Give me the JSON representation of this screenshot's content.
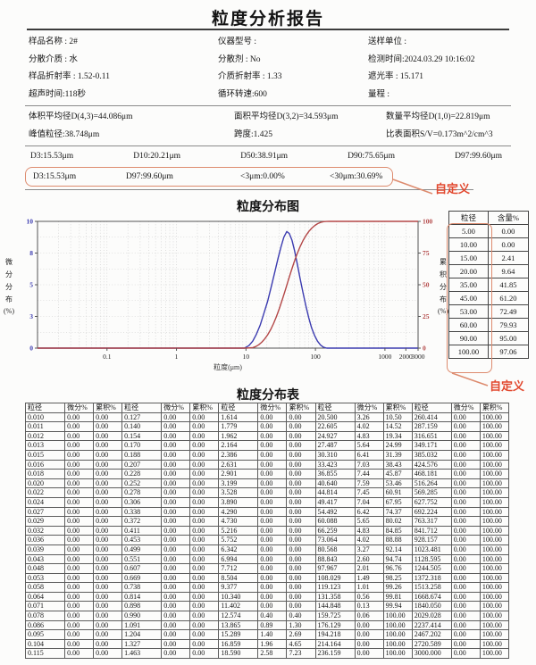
{
  "title": "粒度分析报告",
  "colors": {
    "annotation_red": "#e2482e",
    "highlight_box": "#dd8b6e",
    "curve_blue": "#3b3bb0",
    "curve_red": "#b34747"
  },
  "info": {
    "columns": [
      [
        "样品名称 : 2#",
        "分散介质 : 水",
        "样品折射率 : 1.52-0.11",
        "超声时间:118秒"
      ],
      [
        "仪器型号 :",
        "分散剂 : No",
        "介质折射率 : 1.33",
        "循环转速:600"
      ],
      [
        "送样单位 :",
        "检测时间:2024.03.29 10:16:02",
        "遮光率 : 15.171",
        "量程 :"
      ]
    ]
  },
  "summary": {
    "rows": [
      [
        "体积平均径D(4,3)=44.086μm",
        "面积平均径D(3,2)=34.593μm",
        "数量平均径D(1,0)=22.819μm"
      ],
      [
        "峰值粒径:38.748μm",
        "跨度:1.425",
        "比表面积S/V=0.173m^2/cm^3"
      ]
    ]
  },
  "d_values": [
    "D3:15.53μm",
    "D10:20.21μm",
    "D50:38.91μm",
    "D90:75.65μm",
    "D97:99.60μm"
  ],
  "custom_row": [
    "D3:15.53μm",
    "D97:99.60μm",
    "<3μm:0.00%",
    "<30μm:30.69%"
  ],
  "annotations": {
    "custom_label": "自定义"
  },
  "chart": {
    "title": "粒度分布图",
    "xlabel": "粒度(μm)",
    "ylabel_left_chars": [
      "微",
      "分",
      "分",
      "布",
      "(%)"
    ],
    "ylabel_right_chars": [
      "累",
      "积",
      "分",
      "布",
      "(%)"
    ]
  },
  "chart_data": {
    "type": "line",
    "title": "粒度分布图",
    "xlabel": "粒度(μm)",
    "ylabel_left": "微分分布(%)",
    "ylabel_right": "累积分布(%)",
    "x_scale": "log",
    "x_range": [
      0.01,
      3000
    ],
    "x_ticks": [
      {
        "v": 0.1,
        "label": "0.1"
      },
      {
        "v": 1,
        "label": "1"
      },
      {
        "v": 10,
        "label": "10"
      },
      {
        "v": 100,
        "label": "100"
      },
      {
        "v": 1000,
        "label": "1000"
      },
      {
        "v": 2000,
        "label": "2000"
      },
      {
        "v": 3000,
        "label": "3000"
      }
    ],
    "left_axis": {
      "range": [
        0,
        10
      ],
      "ticks": [
        {
          "v": 0,
          "label": "0"
        },
        {
          "v": 2.5,
          "label": "3"
        },
        {
          "v": 5,
          "label": "5"
        },
        {
          "v": 7.5,
          "label": "8"
        },
        {
          "v": 10,
          "label": "10"
        }
      ]
    },
    "right_axis": {
      "range": [
        0,
        100
      ],
      "ticks": [
        {
          "v": 0,
          "label": "0"
        },
        {
          "v": 25,
          "label": "25"
        },
        {
          "v": 50,
          "label": "50"
        },
        {
          "v": 75,
          "label": "75"
        },
        {
          "v": 100,
          "label": "100"
        }
      ]
    },
    "grid": "dotted",
    "series": [
      {
        "name": "微分分布",
        "axis": "left",
        "color_key": "curve_blue",
        "points": [
          [
            0.01,
            0
          ],
          [
            9.5,
            0
          ],
          [
            11,
            0.2
          ],
          [
            12.5,
            0.55
          ],
          [
            14,
            1.05
          ],
          [
            16,
            1.8
          ],
          [
            18,
            2.7
          ],
          [
            20.5,
            3.7
          ],
          [
            23,
            4.8
          ],
          [
            26,
            6.0
          ],
          [
            29,
            7.1
          ],
          [
            32,
            8.0
          ],
          [
            35,
            8.75
          ],
          [
            38.7,
            9.2
          ],
          [
            42,
            9.05
          ],
          [
            46,
            8.5
          ],
          [
            50,
            7.7
          ],
          [
            55,
            6.6
          ],
          [
            60,
            5.5
          ],
          [
            66,
            4.4
          ],
          [
            73,
            3.3
          ],
          [
            80,
            2.4
          ],
          [
            88,
            1.6
          ],
          [
            97,
            1.0
          ],
          [
            107,
            0.55
          ],
          [
            118,
            0.25
          ],
          [
            130,
            0.08
          ],
          [
            145,
            0
          ],
          [
            3000,
            0
          ]
        ]
      },
      {
        "name": "累积分布",
        "axis": "right",
        "color_key": "curve_red",
        "points": [
          [
            0.01,
            0
          ],
          [
            10,
            0
          ],
          [
            12.574,
            0.4
          ],
          [
            13.865,
            1.3
          ],
          [
            15.289,
            2.69
          ],
          [
            16.859,
            4.65
          ],
          [
            18.59,
            7.23
          ],
          [
            20.5,
            10.5
          ],
          [
            22.605,
            14.52
          ],
          [
            24.927,
            19.34
          ],
          [
            27.487,
            24.99
          ],
          [
            30.31,
            31.39
          ],
          [
            33.423,
            38.43
          ],
          [
            36.855,
            45.87
          ],
          [
            40.64,
            53.46
          ],
          [
            44.814,
            60.91
          ],
          [
            49.417,
            67.95
          ],
          [
            54.492,
            74.37
          ],
          [
            60.088,
            80.02
          ],
          [
            66.259,
            84.85
          ],
          [
            73.064,
            88.88
          ],
          [
            80.568,
            92.14
          ],
          [
            88.843,
            94.74
          ],
          [
            97.967,
            96.76
          ],
          [
            108.029,
            98.25
          ],
          [
            119.123,
            99.26
          ],
          [
            131.358,
            99.81
          ],
          [
            144.848,
            99.94
          ],
          [
            159.725,
            100
          ],
          [
            3000,
            100
          ]
        ]
      }
    ]
  },
  "side_table": {
    "headers": [
      "粒径",
      "含量%"
    ],
    "rows": [
      [
        "5.00",
        "0.00"
      ],
      [
        "10.00",
        "0.00"
      ],
      [
        "15.00",
        "2.41"
      ],
      [
        "20.00",
        "9.64"
      ],
      [
        "35.00",
        "41.85"
      ],
      [
        "45.00",
        "61.20"
      ],
      [
        "53.00",
        "72.49"
      ],
      [
        "60.00",
        "79.93"
      ],
      [
        "90.00",
        "95.00"
      ],
      [
        "100.00",
        "97.06"
      ]
    ]
  },
  "dist_table": {
    "title": "粒度分布表",
    "headers": [
      "粒径",
      "微分%",
      "累积%",
      "粒径",
      "微分%",
      "累积%",
      "粒径",
      "微分%",
      "累积%",
      "粒径",
      "微分%",
      "累积%",
      "粒径",
      "微分%",
      "累积%"
    ],
    "rows": [
      [
        "0.010",
        "0.00",
        "0.00",
        "0.127",
        "0.00",
        "0.00",
        "1.614",
        "0.00",
        "0.00",
        "20.500",
        "3.26",
        "10.50",
        "260.414",
        "0.00",
        "100.00"
      ],
      [
        "0.011",
        "0.00",
        "0.00",
        "0.140",
        "0.00",
        "0.00",
        "1.779",
        "0.00",
        "0.00",
        "22.605",
        "4.02",
        "14.52",
        "287.159",
        "0.00",
        "100.00"
      ],
      [
        "0.012",
        "0.00",
        "0.00",
        "0.154",
        "0.00",
        "0.00",
        "1.962",
        "0.00",
        "0.00",
        "24.927",
        "4.83",
        "19.34",
        "316.651",
        "0.00",
        "100.00"
      ],
      [
        "0.013",
        "0.00",
        "0.00",
        "0.170",
        "0.00",
        "0.00",
        "2.164",
        "0.00",
        "0.00",
        "27.487",
        "5.64",
        "24.99",
        "349.171",
        "0.00",
        "100.00"
      ],
      [
        "0.015",
        "0.00",
        "0.00",
        "0.188",
        "0.00",
        "0.00",
        "2.386",
        "0.00",
        "0.00",
        "30.310",
        "6.41",
        "31.39",
        "385.032",
        "0.00",
        "100.00"
      ],
      [
        "0.016",
        "0.00",
        "0.00",
        "0.207",
        "0.00",
        "0.00",
        "2.631",
        "0.00",
        "0.00",
        "33.423",
        "7.03",
        "38.43",
        "424.576",
        "0.00",
        "100.00"
      ],
      [
        "0.018",
        "0.00",
        "0.00",
        "0.228",
        "0.00",
        "0.00",
        "2.901",
        "0.00",
        "0.00",
        "36.855",
        "7.44",
        "45.87",
        "468.181",
        "0.00",
        "100.00"
      ],
      [
        "0.020",
        "0.00",
        "0.00",
        "0.252",
        "0.00",
        "0.00",
        "3.199",
        "0.00",
        "0.00",
        "40.640",
        "7.59",
        "53.46",
        "516.264",
        "0.00",
        "100.00"
      ],
      [
        "0.022",
        "0.00",
        "0.00",
        "0.278",
        "0.00",
        "0.00",
        "3.528",
        "0.00",
        "0.00",
        "44.814",
        "7.45",
        "60.91",
        "569.285",
        "0.00",
        "100.00"
      ],
      [
        "0.024",
        "0.00",
        "0.00",
        "0.306",
        "0.00",
        "0.00",
        "3.890",
        "0.00",
        "0.00",
        "49.417",
        "7.04",
        "67.95",
        "627.752",
        "0.00",
        "100.00"
      ],
      [
        "0.027",
        "0.00",
        "0.00",
        "0.338",
        "0.00",
        "0.00",
        "4.290",
        "0.00",
        "0.00",
        "54.492",
        "6.42",
        "74.37",
        "692.224",
        "0.00",
        "100.00"
      ],
      [
        "0.029",
        "0.00",
        "0.00",
        "0.372",
        "0.00",
        "0.00",
        "4.730",
        "0.00",
        "0.00",
        "60.088",
        "5.65",
        "80.02",
        "763.317",
        "0.00",
        "100.00"
      ],
      [
        "0.032",
        "0.00",
        "0.00",
        "0.411",
        "0.00",
        "0.00",
        "5.216",
        "0.00",
        "0.00",
        "66.259",
        "4.83",
        "84.85",
        "841.712",
        "0.00",
        "100.00"
      ],
      [
        "0.036",
        "0.00",
        "0.00",
        "0.453",
        "0.00",
        "0.00",
        "5.752",
        "0.00",
        "0.00",
        "73.064",
        "4.02",
        "88.88",
        "928.157",
        "0.00",
        "100.00"
      ],
      [
        "0.039",
        "0.00",
        "0.00",
        "0.499",
        "0.00",
        "0.00",
        "6.342",
        "0.00",
        "0.00",
        "80.568",
        "3.27",
        "92.14",
        "1023.481",
        "0.00",
        "100.00"
      ],
      [
        "0.043",
        "0.00",
        "0.00",
        "0.551",
        "0.00",
        "0.00",
        "6.994",
        "0.00",
        "0.00",
        "88.843",
        "2.60",
        "94.74",
        "1128.595",
        "0.00",
        "100.00"
      ],
      [
        "0.048",
        "0.00",
        "0.00",
        "0.607",
        "0.00",
        "0.00",
        "7.712",
        "0.00",
        "0.00",
        "97.967",
        "2.01",
        "96.76",
        "1244.505",
        "0.00",
        "100.00"
      ],
      [
        "0.053",
        "0.00",
        "0.00",
        "0.669",
        "0.00",
        "0.00",
        "8.504",
        "0.00",
        "0.00",
        "108.029",
        "1.49",
        "98.25",
        "1372.318",
        "0.00",
        "100.00"
      ],
      [
        "0.058",
        "0.00",
        "0.00",
        "0.738",
        "0.00",
        "0.00",
        "9.377",
        "0.00",
        "0.00",
        "119.123",
        "1.01",
        "99.26",
        "1513.258",
        "0.00",
        "100.00"
      ],
      [
        "0.064",
        "0.00",
        "0.00",
        "0.814",
        "0.00",
        "0.00",
        "10.340",
        "0.00",
        "0.00",
        "131.358",
        "0.56",
        "99.81",
        "1668.674",
        "0.00",
        "100.00"
      ],
      [
        "0.071",
        "0.00",
        "0.00",
        "0.898",
        "0.00",
        "0.00",
        "11.402",
        "0.00",
        "0.00",
        "144.848",
        "0.13",
        "99.94",
        "1840.050",
        "0.00",
        "100.00"
      ],
      [
        "0.078",
        "0.00",
        "0.00",
        "0.990",
        "0.00",
        "0.00",
        "12.574",
        "0.40",
        "0.40",
        "159.725",
        "0.06",
        "100.00",
        "2029.028",
        "0.00",
        "100.00"
      ],
      [
        "0.086",
        "0.00",
        "0.00",
        "1.091",
        "0.00",
        "0.00",
        "13.865",
        "0.89",
        "1.30",
        "176.129",
        "0.00",
        "100.00",
        "2237.414",
        "0.00",
        "100.00"
      ],
      [
        "0.095",
        "0.00",
        "0.00",
        "1.204",
        "0.00",
        "0.00",
        "15.289",
        "1.40",
        "2.69",
        "194.218",
        "0.00",
        "100.00",
        "2467.202",
        "0.00",
        "100.00"
      ],
      [
        "0.104",
        "0.00",
        "0.00",
        "1.327",
        "0.00",
        "0.00",
        "16.859",
        "1.96",
        "4.65",
        "214.164",
        "0.00",
        "100.00",
        "2720.589",
        "0.00",
        "100.00"
      ],
      [
        "0.115",
        "0.00",
        "0.00",
        "1.463",
        "0.00",
        "0.00",
        "18.590",
        "2.58",
        "7.23",
        "236.159",
        "0.00",
        "100.00",
        "3000.000",
        "0.00",
        "100.00"
      ]
    ]
  }
}
